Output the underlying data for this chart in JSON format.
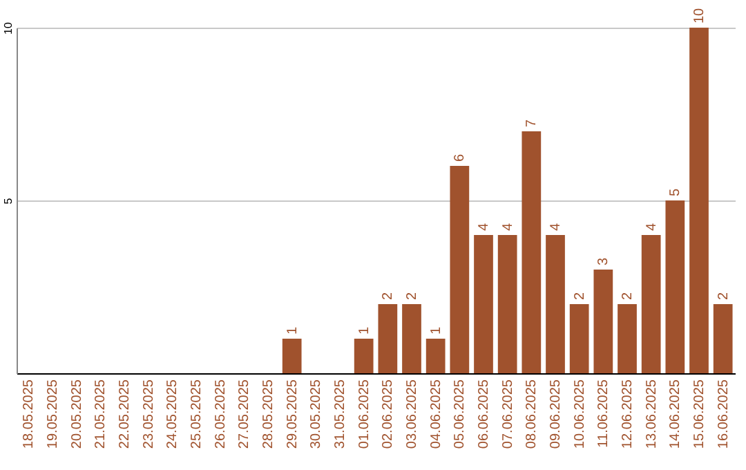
{
  "chart_data": {
    "type": "bar",
    "categories": [
      "18.05.2025",
      "19.05.2025",
      "20.05.2025",
      "21.05.2025",
      "22.05.2025",
      "23.05.2025",
      "24.05.2025",
      "25.05.2025",
      "26.05.2025",
      "27.05.2025",
      "28.05.2025",
      "29.05.2025",
      "30.05.2025",
      "31.05.2025",
      "01.06.2025",
      "02.06.2025",
      "03.06.2025",
      "04.06.2025",
      "05.06.2025",
      "06.06.2025",
      "07.06.2025",
      "08.06.2025",
      "09.06.2025",
      "10.06.2025",
      "11.06.2025",
      "12.06.2025",
      "13.06.2025",
      "14.06.2025",
      "15.06.2025",
      "16.06.2025"
    ],
    "values": [
      0,
      0,
      0,
      0,
      0,
      0,
      0,
      0,
      0,
      0,
      0,
      1,
      0,
      0,
      1,
      2,
      2,
      1,
      6,
      4,
      4,
      7,
      4,
      2,
      3,
      2,
      4,
      5,
      10,
      2
    ],
    "value_labels": [
      null,
      null,
      null,
      null,
      null,
      null,
      null,
      null,
      null,
      null,
      null,
      "1",
      null,
      null,
      "1",
      "2",
      "2",
      "1",
      "6",
      "4",
      "4",
      "7",
      "4",
      "2",
      "3",
      "2",
      "4",
      "5",
      "10",
      "2"
    ],
    "color": "#a0522d",
    "ylim": [
      0,
      10
    ],
    "yticks": [
      5,
      10
    ],
    "grid": "y"
  }
}
